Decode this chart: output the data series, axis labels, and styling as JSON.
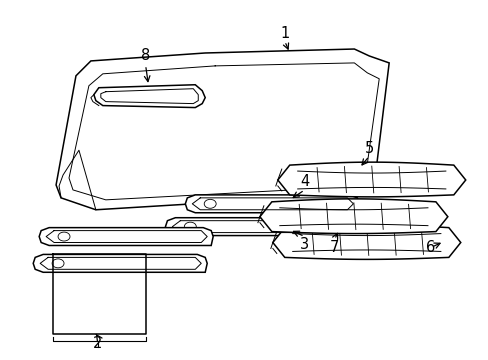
{
  "bg_color": "#ffffff",
  "line_color": "#000000",
  "font_size": 10.5
}
